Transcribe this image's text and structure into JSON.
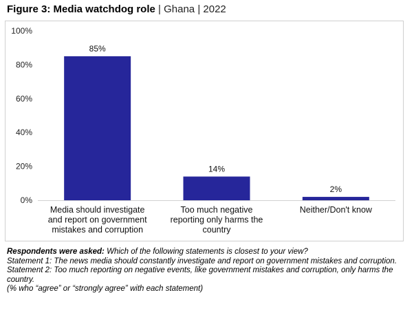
{
  "title": {
    "main": "Figure 3: Media watchdog role",
    "sep1": "|",
    "country": "Ghana",
    "sep2": "|",
    "year": "2022"
  },
  "colors": {
    "bar": "#26269a",
    "axis": "#d0d0d0"
  },
  "chart_data": {
    "type": "bar",
    "categories": [
      "Media should investigate and report on government mistakes and corruption",
      "Too much negative reporting only harms the country",
      "Neither/Don't know"
    ],
    "category_lines": [
      [
        "Media should investigate",
        "and report on government",
        "mistakes and corruption"
      ],
      [
        "Too much negative",
        "reporting only harms the",
        "country"
      ],
      [
        "Neither/Don't know"
      ]
    ],
    "values": [
      85,
      14,
      2
    ],
    "value_labels": [
      "85%",
      "14%",
      "2%"
    ],
    "ylim": [
      0,
      100
    ],
    "yticks": [
      0,
      20,
      40,
      60,
      80,
      100
    ],
    "ytick_labels": [
      "0%",
      "20%",
      "40%",
      "60%",
      "80%",
      "100%"
    ],
    "grid": false,
    "legend": "none"
  },
  "footer": {
    "asked_label": "Respondents were asked:",
    "asked_text": "Which of the following statements is closest to your view?",
    "statement1": "Statement 1: The news media should constantly investigate and report on government mistakes and corruption.",
    "statement2": "Statement 2: Too much reporting on negative events, like government mistakes and corruption, only harms the country.",
    "note": "(% who “agree” or “strongly agree” with each statement)"
  }
}
